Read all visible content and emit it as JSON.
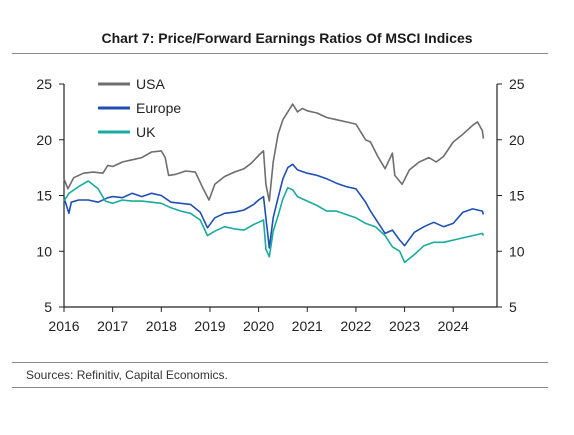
{
  "title": "Chart 7: Price/Forward Earnings Ratios Of MSCI Indices",
  "source": "Sources: Refinitiv, Capital Economics.",
  "chart_data": {
    "type": "line",
    "title": "Chart 7: Price/Forward Earnings Ratios Of MSCI Indices",
    "xlabel": "",
    "ylabel": "",
    "xlim": [
      2016.0,
      2024.9
    ],
    "ylim": [
      5,
      25
    ],
    "y_ticks": [
      5,
      10,
      15,
      20,
      25
    ],
    "x_ticks": [
      2016,
      2017,
      2018,
      2019,
      2020,
      2021,
      2022,
      2023,
      2024
    ],
    "x_tick_labels": [
      "2016",
      "2017",
      "2018",
      "2019",
      "2020",
      "2021",
      "2022",
      "2023",
      "2024"
    ],
    "legend_position": "top-left",
    "grid": false,
    "series": [
      {
        "name": "USA",
        "color": "#6e6e6e",
        "x": [
          2016.0,
          2016.08,
          2016.2,
          2016.4,
          2016.6,
          2016.8,
          2016.9,
          2017.0,
          2017.2,
          2017.4,
          2017.6,
          2017.8,
          2018.0,
          2018.08,
          2018.15,
          2018.3,
          2018.5,
          2018.7,
          2018.85,
          2018.98,
          2019.1,
          2019.3,
          2019.5,
          2019.7,
          2019.85,
          2020.0,
          2020.1,
          2020.15,
          2020.22,
          2020.3,
          2020.4,
          2020.5,
          2020.6,
          2020.7,
          2020.8,
          2020.9,
          2021.0,
          2021.2,
          2021.4,
          2021.6,
          2021.8,
          2022.0,
          2022.2,
          2022.3,
          2022.45,
          2022.6,
          2022.75,
          2022.8,
          2022.95,
          2023.1,
          2023.3,
          2023.5,
          2023.65,
          2023.8,
          2024.0,
          2024.2,
          2024.4,
          2024.5,
          2024.6,
          2024.62
        ],
        "values": [
          16.5,
          15.6,
          16.6,
          17.0,
          17.1,
          17.0,
          17.7,
          17.6,
          18.0,
          18.2,
          18.4,
          18.9,
          19.0,
          18.4,
          16.8,
          16.9,
          17.2,
          17.1,
          15.7,
          14.6,
          16.0,
          16.7,
          17.1,
          17.4,
          17.9,
          18.6,
          19.0,
          16.0,
          14.5,
          18.0,
          20.5,
          21.8,
          22.5,
          23.2,
          22.5,
          22.8,
          22.6,
          22.4,
          22.0,
          21.8,
          21.6,
          21.4,
          20.0,
          19.8,
          18.5,
          17.4,
          18.8,
          16.8,
          16.0,
          17.3,
          18.0,
          18.4,
          18.0,
          18.5,
          19.8,
          20.5,
          21.3,
          21.6,
          20.8,
          20.1
        ]
      },
      {
        "name": "Europe",
        "color": "#1f4fb4",
        "x": [
          2016.0,
          2016.1,
          2016.15,
          2016.3,
          2016.5,
          2016.7,
          2016.9,
          2017.0,
          2017.2,
          2017.4,
          2017.6,
          2017.8,
          2018.0,
          2018.2,
          2018.4,
          2018.6,
          2018.8,
          2018.95,
          2019.1,
          2019.3,
          2019.5,
          2019.7,
          2019.9,
          2020.0,
          2020.1,
          2020.15,
          2020.22,
          2020.3,
          2020.4,
          2020.5,
          2020.6,
          2020.7,
          2020.8,
          2021.0,
          2021.2,
          2021.4,
          2021.6,
          2021.8,
          2022.0,
          2022.1,
          2022.2,
          2022.3,
          2022.45,
          2022.6,
          2022.75,
          2022.9,
          2023.0,
          2023.2,
          2023.4,
          2023.6,
          2023.8,
          2024.0,
          2024.2,
          2024.4,
          2024.6,
          2024.62
        ],
        "values": [
          14.8,
          13.4,
          14.4,
          14.6,
          14.6,
          14.4,
          14.8,
          14.9,
          14.8,
          15.2,
          14.9,
          15.2,
          15.0,
          14.4,
          14.3,
          14.2,
          13.5,
          12.1,
          13.0,
          13.4,
          13.5,
          13.7,
          14.2,
          14.6,
          14.9,
          13.0,
          10.3,
          13.0,
          14.8,
          16.5,
          17.5,
          17.8,
          17.3,
          17.0,
          16.8,
          16.5,
          16.1,
          15.8,
          15.6,
          15.0,
          14.4,
          13.6,
          12.6,
          11.6,
          11.9,
          11.0,
          10.5,
          11.7,
          12.2,
          12.6,
          12.2,
          12.5,
          13.5,
          13.8,
          13.6,
          13.3
        ]
      },
      {
        "name": "UK",
        "color": "#1aab9f",
        "x": [
          2016.0,
          2016.1,
          2016.3,
          2016.5,
          2016.7,
          2016.85,
          2017.0,
          2017.2,
          2017.4,
          2017.6,
          2017.8,
          2018.0,
          2018.2,
          2018.4,
          2018.6,
          2018.8,
          2018.95,
          2019.1,
          2019.3,
          2019.5,
          2019.7,
          2019.9,
          2020.0,
          2020.1,
          2020.15,
          2020.22,
          2020.3,
          2020.4,
          2020.5,
          2020.6,
          2020.7,
          2020.8,
          2021.0,
          2021.2,
          2021.4,
          2021.6,
          2021.8,
          2022.0,
          2022.2,
          2022.4,
          2022.6,
          2022.75,
          2022.9,
          2023.0,
          2023.2,
          2023.4,
          2023.6,
          2023.8,
          2024.0,
          2024.2,
          2024.4,
          2024.6,
          2024.62
        ],
        "values": [
          14.5,
          15.2,
          15.8,
          16.3,
          15.6,
          14.5,
          14.3,
          14.6,
          14.5,
          14.5,
          14.4,
          14.3,
          13.9,
          13.6,
          13.4,
          12.8,
          11.4,
          11.8,
          12.2,
          12.0,
          11.9,
          12.4,
          12.6,
          12.8,
          10.2,
          9.5,
          11.8,
          13.2,
          14.7,
          15.7,
          15.5,
          14.9,
          14.5,
          14.1,
          13.6,
          13.6,
          13.3,
          13.0,
          12.5,
          12.2,
          11.4,
          10.4,
          10.0,
          9.0,
          9.7,
          10.5,
          10.8,
          10.8,
          11.0,
          11.2,
          11.4,
          11.6,
          11.4
        ]
      }
    ]
  }
}
